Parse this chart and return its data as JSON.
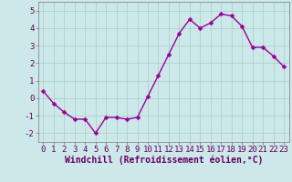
{
  "x": [
    0,
    1,
    2,
    3,
    4,
    5,
    6,
    7,
    8,
    9,
    10,
    11,
    12,
    13,
    14,
    15,
    16,
    17,
    18,
    19,
    20,
    21,
    22,
    23
  ],
  "y": [
    0.4,
    -0.3,
    -0.8,
    -1.2,
    -1.2,
    -2.0,
    -1.1,
    -1.1,
    -1.2,
    -1.1,
    0.1,
    1.3,
    2.5,
    3.7,
    4.5,
    4.0,
    4.3,
    4.8,
    4.7,
    4.1,
    2.9,
    2.9,
    2.4,
    1.8
  ],
  "line_color": "#990099",
  "marker": "D",
  "marker_size": 2.5,
  "bg_color": "#cce8e8",
  "grid_color": "#aacccc",
  "xlabel": "Windchill (Refroidissement éolien,°C)",
  "xlabel_fontsize": 7,
  "ylim": [
    -2.5,
    5.5
  ],
  "xlim": [
    -0.5,
    23.5
  ],
  "yticks": [
    -2,
    -1,
    0,
    1,
    2,
    3,
    4,
    5
  ],
  "xticks": [
    0,
    1,
    2,
    3,
    4,
    5,
    6,
    7,
    8,
    9,
    10,
    11,
    12,
    13,
    14,
    15,
    16,
    17,
    18,
    19,
    20,
    21,
    22,
    23
  ],
  "tick_fontsize": 6.5,
  "line_width": 1.0,
  "spine_color": "#777777",
  "bottom_bg": "#cc99cc"
}
